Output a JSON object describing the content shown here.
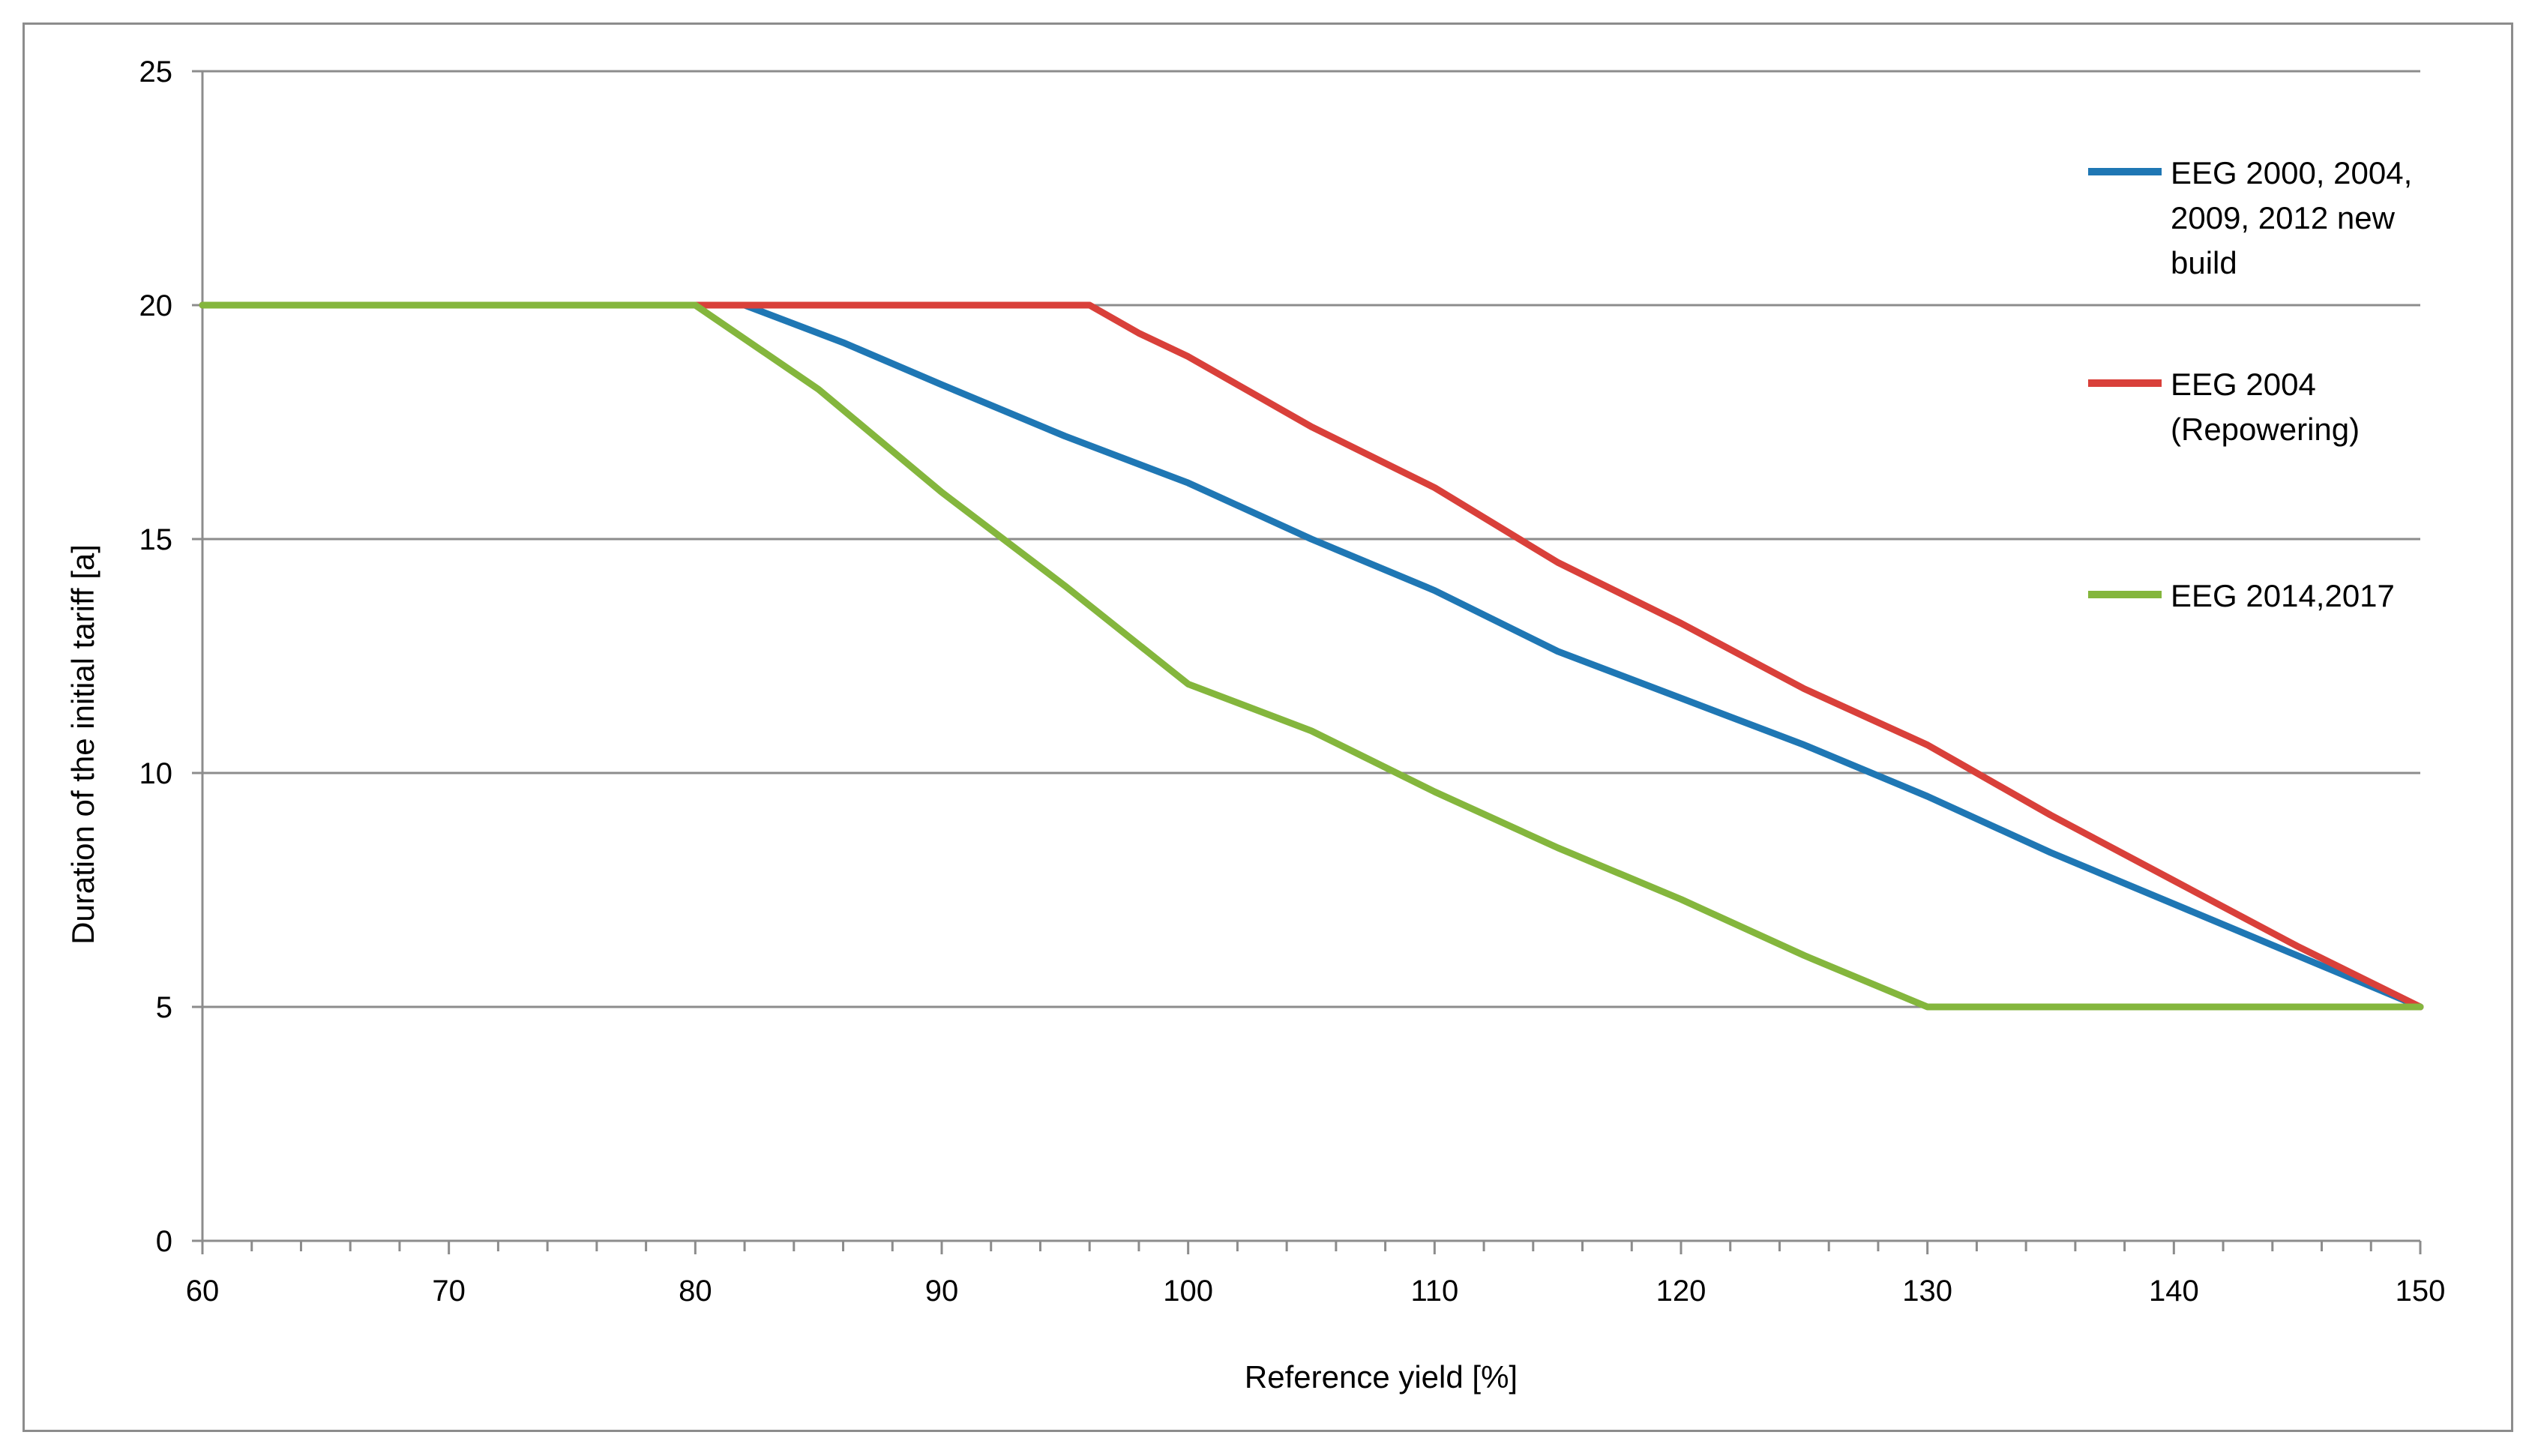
{
  "chart_data": {
    "type": "line",
    "title": "",
    "xlabel": "Reference yield [%]",
    "ylabel": "Duration of the initial tariff [a]",
    "xlim": [
      60,
      150
    ],
    "ylim": [
      0,
      25
    ],
    "x_ticks": [
      "60",
      "70",
      "80",
      "90",
      "100",
      "110",
      "120",
      "130",
      "140",
      "150"
    ],
    "y_ticks": [
      "0",
      "5",
      "10",
      "15",
      "20",
      "25"
    ],
    "grid": "horizontal",
    "legend_position": "right",
    "series": [
      {
        "name": "EEG 2000, 2004, 2009, 2012 new build",
        "legend_lines": [
          "EEG 2000, 2004,",
          "2009, 2012 new",
          "build"
        ],
        "color": "#1f77b4",
        "x": [
          60,
          82,
          86,
          90,
          95,
          100,
          105,
          110,
          115,
          120,
          125,
          130,
          135,
          140,
          145,
          150
        ],
        "y": [
          20,
          20,
          19.2,
          18.3,
          17.2,
          16.2,
          15.0,
          13.9,
          12.6,
          11.6,
          10.6,
          9.5,
          8.3,
          7.2,
          6.1,
          5
        ]
      },
      {
        "name": "EEG 2004 (Repowering)",
        "legend_lines": [
          "EEG 2004",
          "(Repowering)"
        ],
        "color": "#d9403a",
        "x": [
          60,
          96,
          98,
          100,
          105,
          110,
          115,
          120,
          125,
          130,
          135,
          140,
          145,
          150
        ],
        "y": [
          20,
          20,
          19.4,
          18.9,
          17.4,
          16.1,
          14.5,
          13.2,
          11.8,
          10.6,
          9.1,
          7.7,
          6.3,
          5
        ]
      },
      {
        "name": "EEG 2014,2017",
        "legend_lines": [
          "EEG 2014,2017"
        ],
        "color": "#84b63d",
        "x": [
          60,
          80,
          85,
          90,
          95,
          100,
          105,
          110,
          115,
          120,
          125,
          130,
          150
        ],
        "y": [
          20,
          20,
          18.2,
          16.0,
          14.0,
          11.9,
          10.9,
          9.6,
          8.4,
          7.3,
          6.1,
          5,
          5
        ]
      }
    ]
  },
  "colors": {
    "grid": "#8c8c8c",
    "axis": "#8c8c8c",
    "frame": "#8c8c8c"
  }
}
